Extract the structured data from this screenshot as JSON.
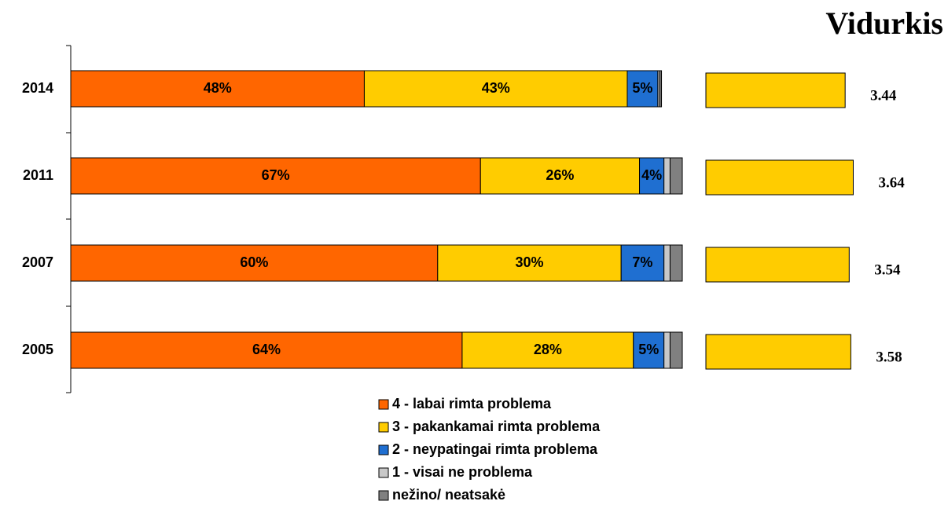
{
  "chart_data": [
    {
      "type": "stacked_barh",
      "categories": [
        "2014",
        "2011",
        "2007",
        "2005"
      ],
      "xlim": [
        0,
        100
      ],
      "legend": "bottom",
      "series": [
        {
          "name": "4 - labai rimta problema",
          "color": "#FF6600",
          "values": [
            48,
            67,
            60,
            64
          ],
          "value_labels": [
            "48%",
            "67%",
            "60%",
            "64%"
          ]
        },
        {
          "name": "3 - pakankamai rimta problema",
          "color": "#FFCC00",
          "values": [
            43,
            26,
            30,
            28
          ],
          "value_labels": [
            "43%",
            "26%",
            "30%",
            "28%"
          ]
        },
        {
          "name": "2 - neypatingai rimta problema",
          "color": "#1F6FD1",
          "values": [
            5,
            4,
            7,
            5
          ],
          "value_labels": [
            "5%",
            "4%",
            "7%",
            "5%"
          ]
        },
        {
          "name": "1 - visai ne problema",
          "color": "#C8C8C8",
          "values": [
            0.3,
            1,
            1,
            1
          ]
        },
        {
          "name": "nežino/ neatsakė",
          "color": "#808080",
          "values": [
            0.3,
            2,
            2,
            2
          ]
        }
      ]
    },
    {
      "type": "barh",
      "title": "Vidurkis",
      "categories": [
        "2014",
        "2011",
        "2007",
        "2005"
      ],
      "values": [
        3.44,
        3.64,
        3.54,
        3.58
      ],
      "color": "#FFCC00",
      "xlim": [
        0,
        4
      ]
    }
  ]
}
